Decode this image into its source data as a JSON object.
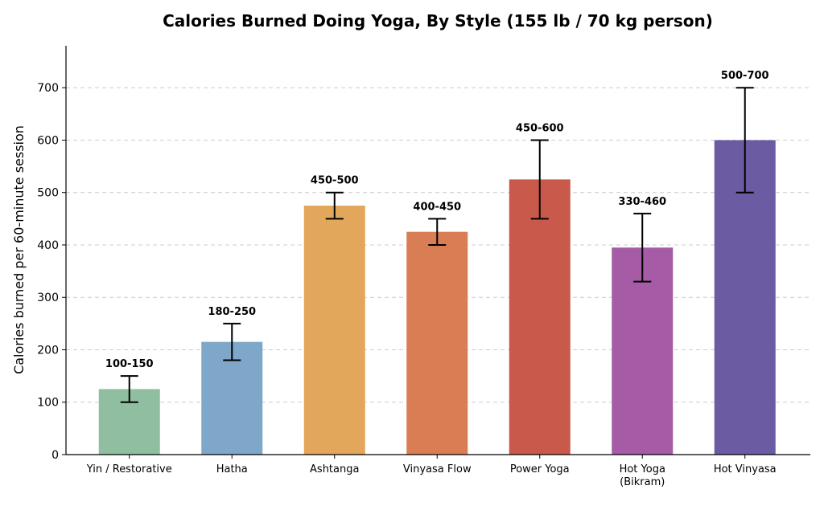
{
  "chart_data": {
    "type": "bar",
    "title": "Calories Burned Doing Yoga, By Style (155 lb / 70 kg person)",
    "xlabel": "",
    "ylabel": "Calories burned per 60-minute session",
    "ylim": [
      0,
      780
    ],
    "yticks": [
      0,
      100,
      200,
      300,
      400,
      500,
      600,
      700
    ],
    "grid": "y dashed",
    "categories": [
      [
        "Yin / Restorative"
      ],
      [
        "Hatha"
      ],
      [
        "Ashtanga"
      ],
      [
        "Vinyasa Flow"
      ],
      [
        "Power Yoga"
      ],
      [
        "Hot Yoga",
        "(Bikram)"
      ],
      [
        "Hot Vinyasa"
      ]
    ],
    "values": [
      125,
      215,
      475,
      425,
      525,
      395,
      600
    ],
    "error_low": [
      100,
      180,
      450,
      400,
      450,
      330,
      500
    ],
    "error_high": [
      150,
      250,
      500,
      450,
      600,
      460,
      700
    ],
    "range_labels": [
      "100-150",
      "180-250",
      "450-500",
      "400-450",
      "450-600",
      "330-460",
      "500-700"
    ],
    "colors": [
      "#8fbfa0",
      "#7fa7c9",
      "#e2a75a",
      "#d97d55",
      "#c9594b",
      "#a65ba6",
      "#6b5ba3"
    ]
  }
}
